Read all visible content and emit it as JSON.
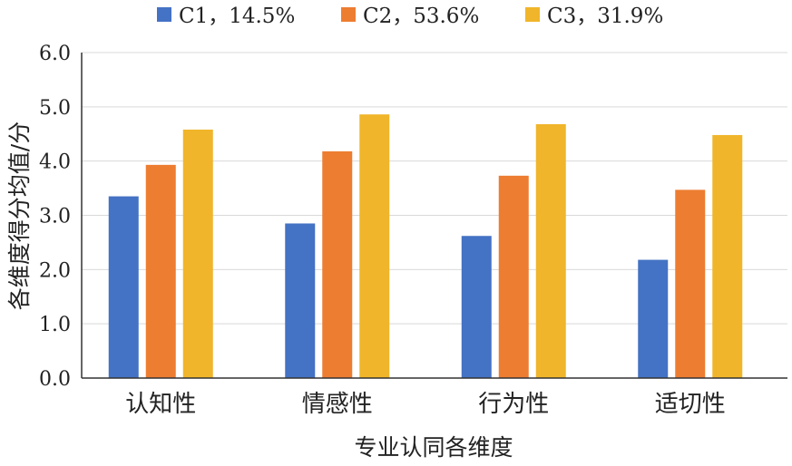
{
  "chart_data": {
    "type": "bar",
    "categories": [
      "认知性",
      "情感性",
      "行为性",
      "适切性"
    ],
    "series": [
      {
        "name": "C1，14.5%",
        "color": "#4472c4",
        "values": [
          3.35,
          2.85,
          2.62,
          2.18
        ]
      },
      {
        "name": "C2，53.6%",
        "color": "#ed7d31",
        "values": [
          3.93,
          4.18,
          3.73,
          3.47
        ]
      },
      {
        "name": "C3，31.9%",
        "color": "#f0b52a",
        "values": [
          4.58,
          4.86,
          4.68,
          4.48
        ]
      }
    ],
    "xlabel": "专业认同各维度",
    "ylabel": "各维度得分均值/分",
    "ylim": [
      0,
      6
    ],
    "yticks": [
      "0.0",
      "1.0",
      "2.0",
      "3.0",
      "4.0",
      "5.0",
      "6.0"
    ],
    "grid": true,
    "legend_position": "top"
  }
}
